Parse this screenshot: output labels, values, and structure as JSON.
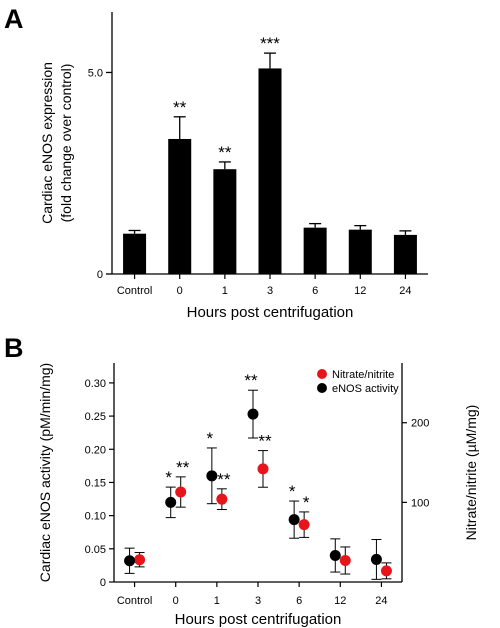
{
  "chart_data": [
    {
      "panel": "A",
      "type": "bar",
      "xlabel": "Hours post centrifugation",
      "ylabel_line1": "Cardiac eNOS expression",
      "ylabel_line2": "(fold change over control)",
      "ylim": [
        0,
        6.5
      ],
      "yticks": [
        {
          "value": 0,
          "label": "0"
        },
        {
          "value": 5,
          "label": "5.0"
        }
      ],
      "categories": [
        "Control",
        "0",
        "1",
        "3",
        "6",
        "12",
        "24"
      ],
      "values": [
        1.0,
        3.35,
        2.6,
        5.1,
        1.15,
        1.1,
        0.97
      ],
      "errors": [
        0.08,
        0.55,
        0.18,
        0.38,
        0.1,
        0.1,
        0.1
      ],
      "significance": [
        "",
        "**",
        "**",
        "***",
        "",
        "",
        ""
      ],
      "bar_color": "#000000"
    },
    {
      "panel": "B",
      "type": "scatter",
      "xlabel": "Hours post centrifugation",
      "ylabel_left": "Cardiac eNOS activity (pM/min/mg)",
      "ylabel_right": "Nitrate/nitrite (µM/mg)",
      "categories": [
        "Control",
        "0",
        "1",
        "3",
        "6",
        "12",
        "24"
      ],
      "ylim_left": [
        0,
        0.33
      ],
      "yticks_left": [
        {
          "value": 0,
          "label": "0"
        },
        {
          "value": 0.05,
          "label": "0.05"
        },
        {
          "value": 0.1,
          "label": "0.10"
        },
        {
          "value": 0.15,
          "label": "0.15"
        },
        {
          "value": 0.2,
          "label": "0.20"
        },
        {
          "value": 0.25,
          "label": "0.25"
        },
        {
          "value": 0.3,
          "label": "0.30"
        }
      ],
      "ylim_right": [
        0,
        275
      ],
      "yticks_right": [
        {
          "value": 100,
          "label": "100"
        },
        {
          "value": 200,
          "label": "200"
        }
      ],
      "legend_position": "top-right",
      "series": [
        {
          "name": "Nitrate/nitrite",
          "axis": "right",
          "color": "#e8141b",
          "values": [
            28,
            113,
            104,
            142,
            72,
            27,
            14
          ],
          "errors": [
            9,
            19,
            13,
            23,
            16,
            17,
            10
          ],
          "significance": [
            "",
            "**",
            "**",
            "**",
            "*",
            "",
            ""
          ]
        },
        {
          "name": "eNOS activity",
          "axis": "left",
          "color": "#000000",
          "values": [
            0.032,
            0.12,
            0.16,
            0.253,
            0.094,
            0.04,
            0.034
          ],
          "errors": [
            0.019,
            0.023,
            0.042,
            0.036,
            0.028,
            0.025,
            0.03
          ],
          "significance": [
            "",
            "*",
            "*",
            "**",
            "*",
            "",
            ""
          ]
        }
      ]
    }
  ]
}
